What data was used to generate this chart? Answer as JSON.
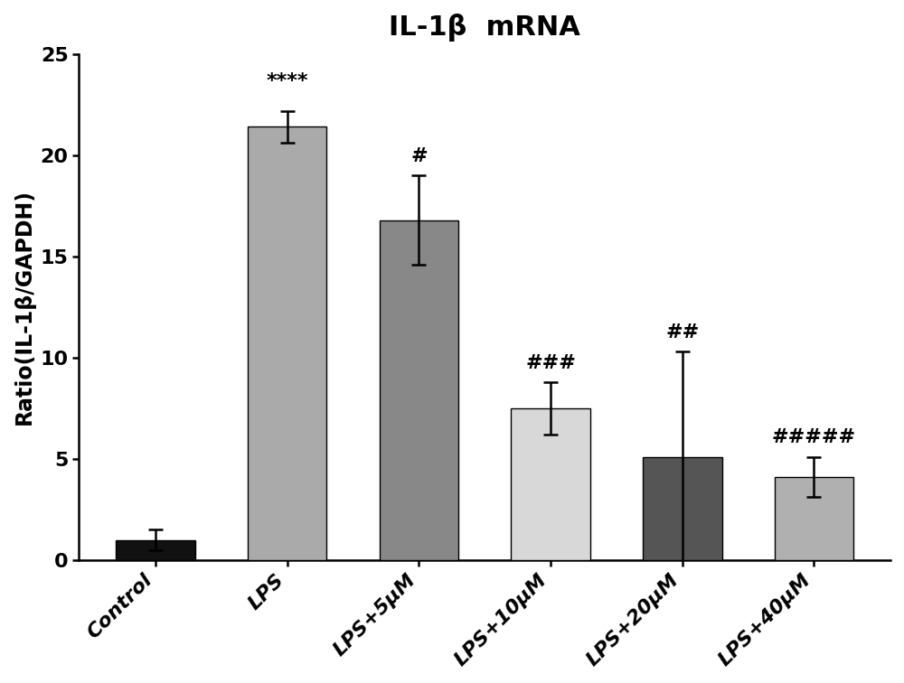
{
  "title": "IL-1β  mRNA",
  "ylabel": "Ratio(IL-1β/GAPDH)",
  "categories": [
    "Control",
    "LPS",
    "LPS+5μM",
    "LPS+10μM",
    "LPS+20μM",
    "LPS+40μM"
  ],
  "values": [
    1.0,
    21.4,
    16.8,
    7.5,
    5.1,
    4.1
  ],
  "errors": [
    0.5,
    0.8,
    2.2,
    1.3,
    5.2,
    1.0
  ],
  "bar_colors": [
    "#111111",
    "#aaaaaa",
    "#888888",
    "#d8d8d8",
    "#555555",
    "#b0b0b0"
  ],
  "ylim": [
    0,
    25
  ],
  "yticks": [
    0,
    5,
    10,
    15,
    20,
    25
  ],
  "annotations": [
    "",
    "****",
    "#",
    "###",
    "##",
    "#####"
  ],
  "annot_y_offsets": [
    0.3,
    1.0,
    0.5,
    0.5,
    0.5,
    0.5
  ],
  "title_fontsize": 22,
  "label_fontsize": 17,
  "tick_fontsize": 16,
  "annot_fontsize": 16,
  "bar_width": 0.6,
  "figsize": [
    10.0,
    7.56
  ],
  "dpi": 100
}
